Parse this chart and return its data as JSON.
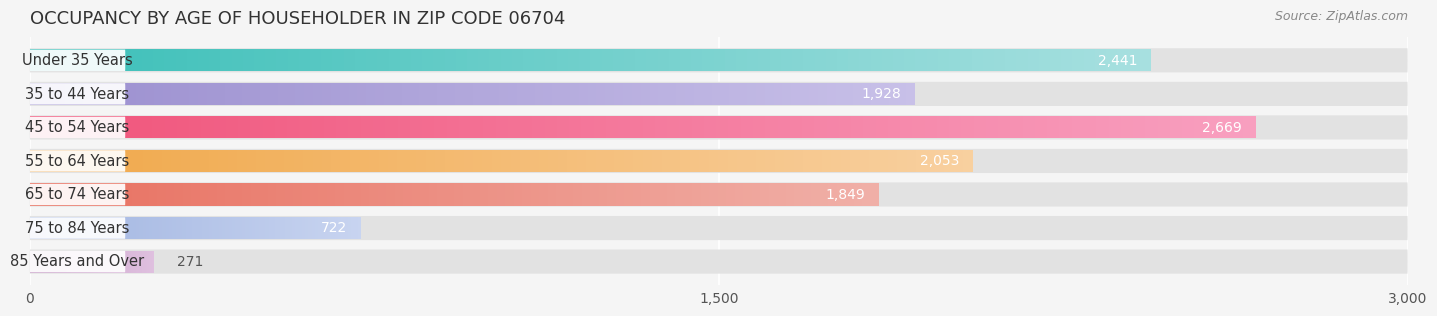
{
  "title": "OCCUPANCY BY AGE OF HOUSEHOLDER IN ZIP CODE 06704",
  "source": "Source: ZipAtlas.com",
  "categories": [
    "Under 35 Years",
    "35 to 44 Years",
    "45 to 54 Years",
    "55 to 64 Years",
    "65 to 74 Years",
    "75 to 84 Years",
    "85 Years and Over"
  ],
  "values": [
    2441,
    1928,
    2669,
    2053,
    1849,
    722,
    271
  ],
  "bar_colors_left": [
    "#3bbfb8",
    "#9b8fcf",
    "#f0547a",
    "#f0a84a",
    "#e87060",
    "#a0b4e0",
    "#c8a0c8"
  ],
  "bar_colors_right": [
    "#a8e0e0",
    "#c8c0e8",
    "#f8a0c0",
    "#f8d0a0",
    "#f0b0a8",
    "#c8d4f0",
    "#dfc0df"
  ],
  "xlim": [
    0,
    3000
  ],
  "xticks": [
    0,
    1500,
    3000
  ],
  "background_color": "#f0f0f0",
  "bar_background": "#e8e8e8",
  "title_fontsize": 13,
  "label_fontsize": 10.5,
  "value_fontsize": 10
}
